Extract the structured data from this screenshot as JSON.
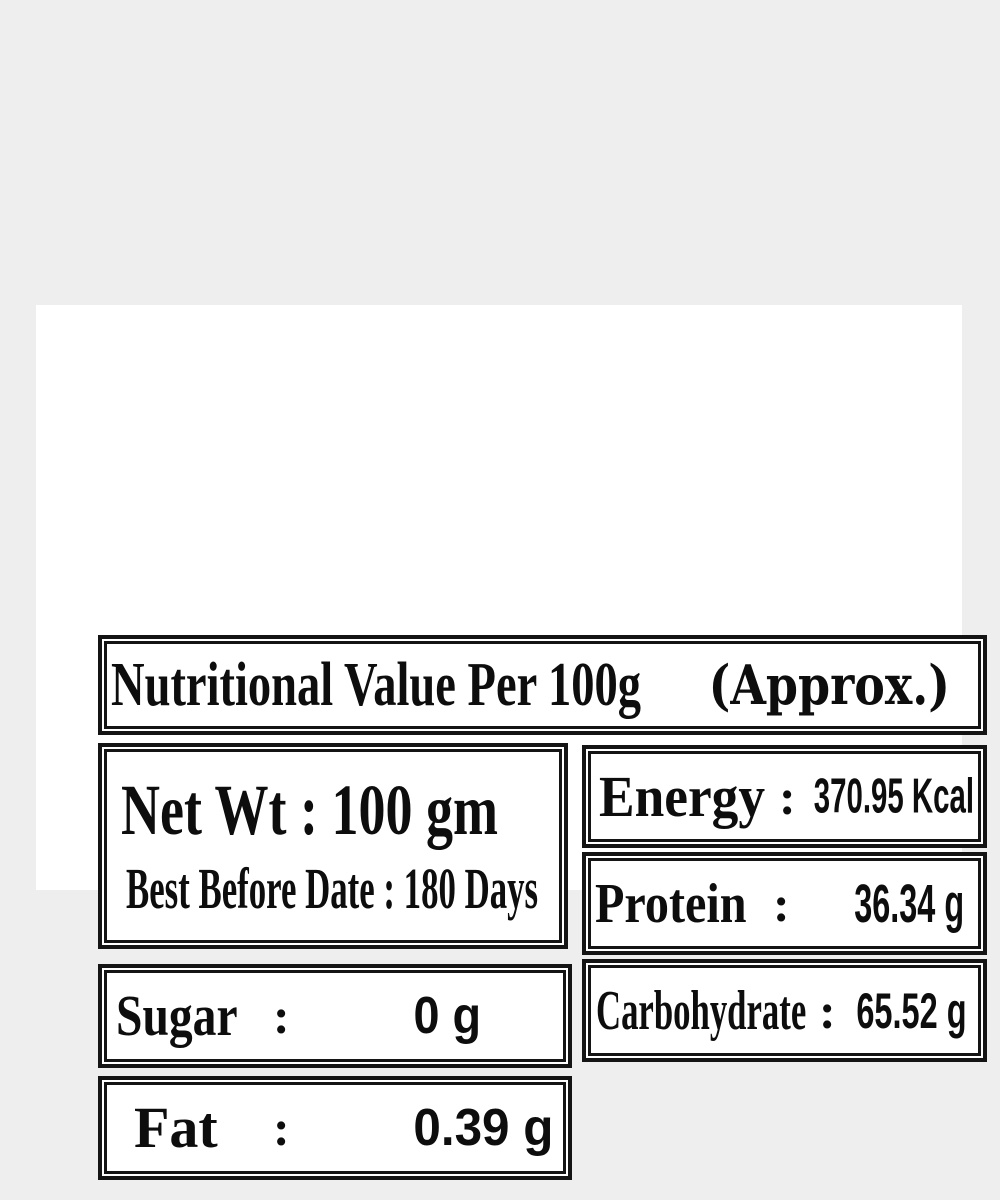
{
  "colors": {
    "background": "#eeeeee",
    "card": "#ffffff",
    "border": "#141414",
    "text": "#0d0d0d"
  },
  "title": {
    "main": "Nutritional Value Per 100g",
    "paren": "(Approx.)"
  },
  "net_wt": {
    "label": "Net Wt",
    "colon": ":",
    "value": "100 gm"
  },
  "best_before": {
    "label": "Best Before Date",
    "colon": ":",
    "value": "180 Days"
  },
  "sugar": {
    "label": "Sugar",
    "colon": ":",
    "value": "0 g"
  },
  "fat": {
    "label": "Fat",
    "colon": ":",
    "value": "0.39 g"
  },
  "energy": {
    "label": "Energy",
    "colon": ":",
    "value": "370.95 Kcal"
  },
  "protein": {
    "label": "Protein",
    "colon": ":",
    "value": "36.34 g"
  },
  "carbohydrate": {
    "label": "Carbohydrate",
    "colon": ":",
    "value": "65.52 g"
  }
}
